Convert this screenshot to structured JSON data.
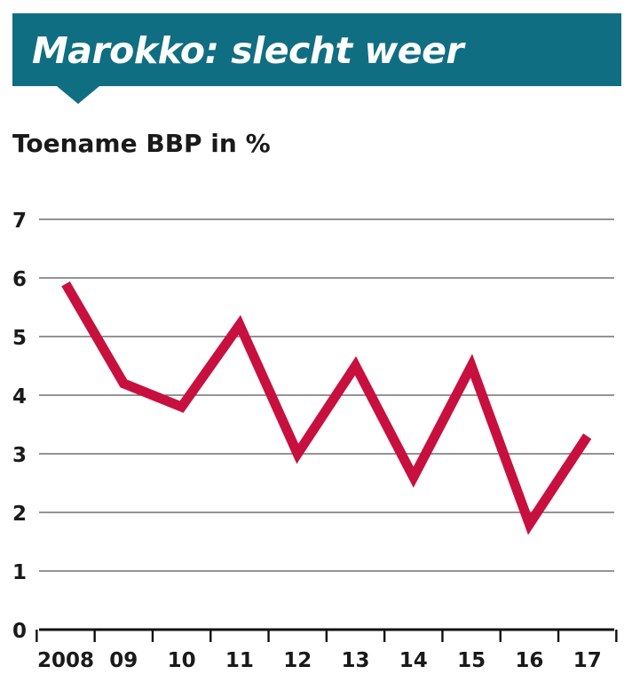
{
  "header": {
    "title": "Marokko: slecht weer",
    "banner_color": "#0f6e82"
  },
  "chart_data": {
    "type": "line",
    "title": "Toename BBP in %",
    "xlabel": "",
    "ylabel": "",
    "categories": [
      "2008",
      "09",
      "10",
      "11",
      "12",
      "13",
      "14",
      "15",
      "16",
      "17"
    ],
    "series": [
      {
        "values": [
          5.9,
          4.2,
          3.8,
          5.2,
          3.0,
          4.5,
          2.6,
          4.5,
          1.8,
          3.3
        ],
        "color": "#c8103e"
      }
    ],
    "ylim": [
      0,
      7
    ],
    "yticks": [
      0,
      1,
      2,
      3,
      4,
      5,
      6,
      7
    ],
    "grid": true,
    "legend": "none"
  }
}
